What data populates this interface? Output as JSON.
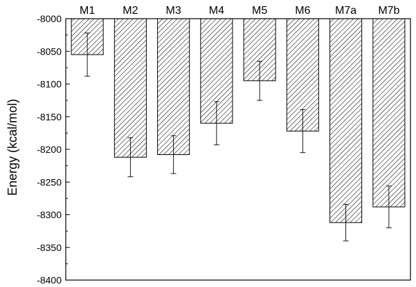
{
  "chart_data": {
    "type": "bar",
    "title": "",
    "xlabel": "",
    "ylabel": "Energy (kcal/mol)",
    "categories": [
      "M1",
      "M2",
      "M3",
      "M4",
      "M5",
      "M6",
      "M7a",
      "M7b"
    ],
    "values": [
      -8055,
      -8212,
      -8208,
      -8160,
      -8095,
      -8172,
      -8312,
      -8288
    ],
    "error": [
      33,
      30,
      29,
      33,
      30,
      33,
      28,
      32
    ],
    "ylim": [
      -8400,
      -8000
    ],
    "yticks": [
      "-8000",
      "-8050",
      "-8100",
      "-8150",
      "-8200",
      "-8250",
      "-8300",
      "-8350",
      "-8400"
    ],
    "bar_fill": "hatched",
    "colors": {
      "bar_hatch": "#000000",
      "bar_edge": "#000000",
      "error_bar": "#000000",
      "axis": "#000000"
    },
    "grid": false,
    "legend": "none"
  }
}
